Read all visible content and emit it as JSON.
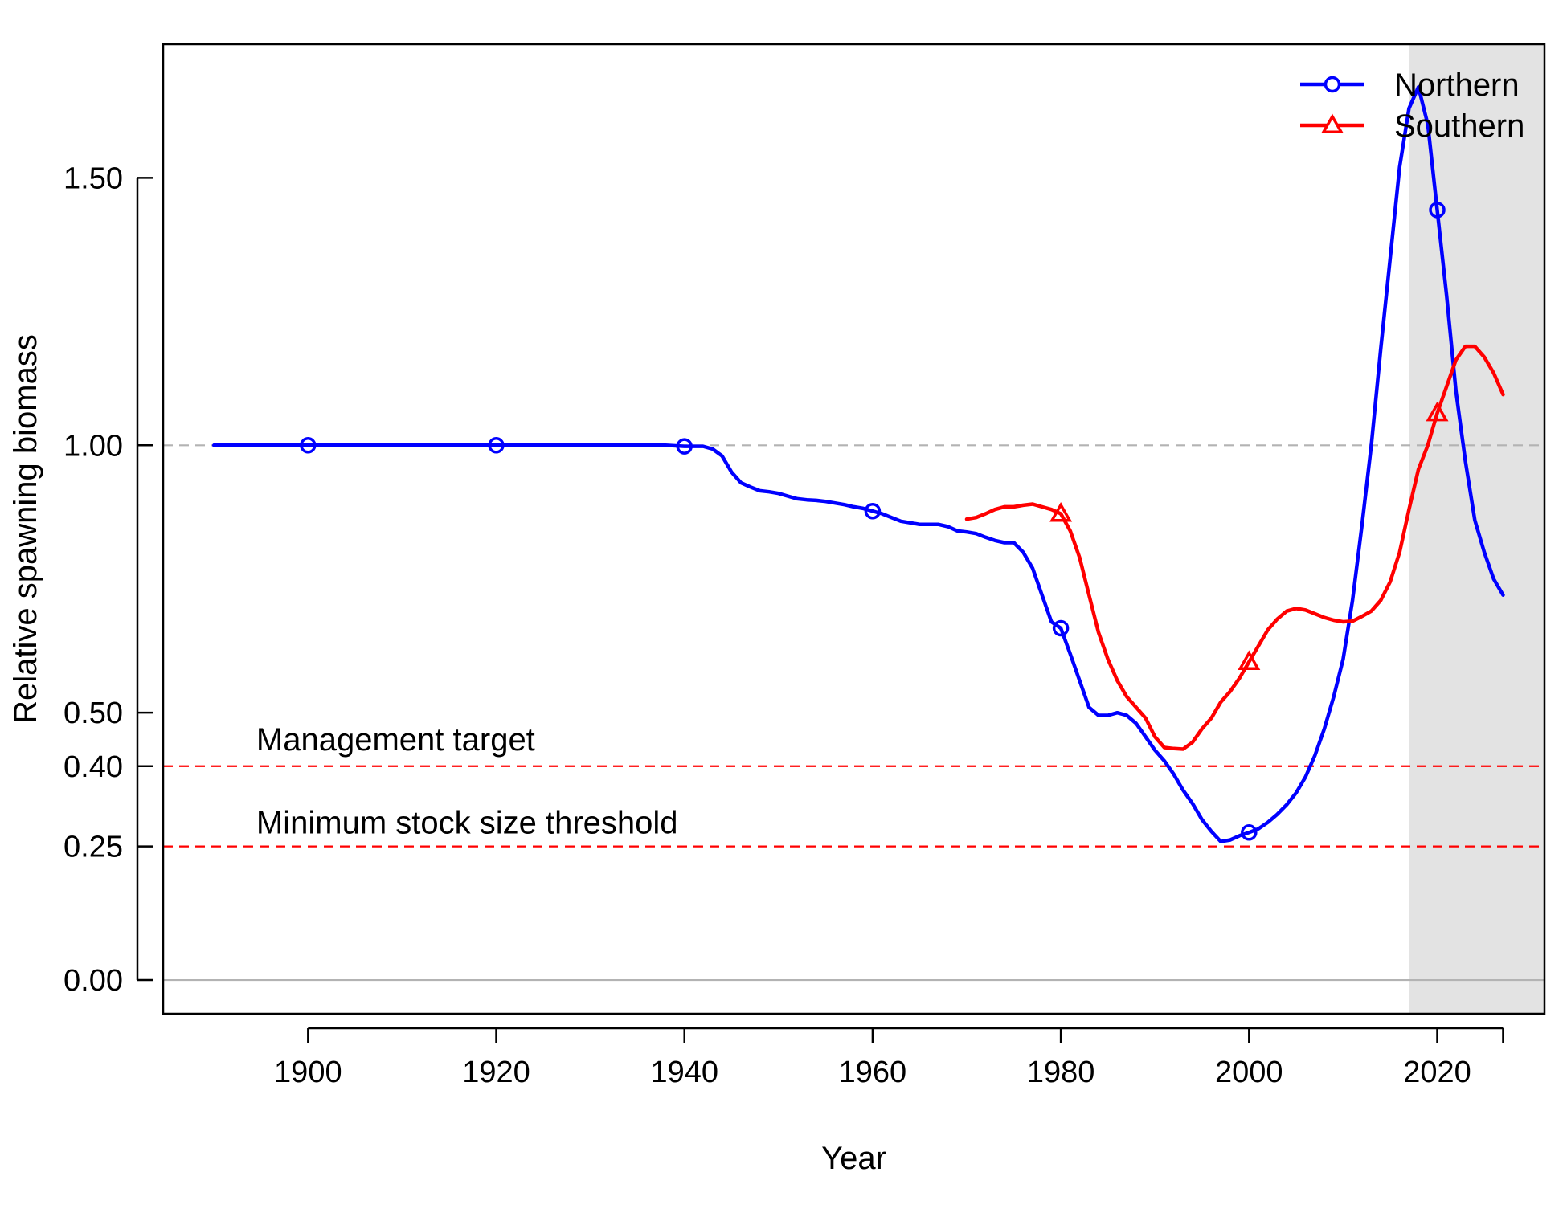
{
  "chart_data": {
    "type": "line",
    "title": "",
    "xlabel": "Year",
    "ylabel": "Relative spawning biomass",
    "xlim": [
      1884.6,
      2031.4
    ],
    "ylim": [
      -0.063,
      1.75
    ],
    "x_ticks": [
      1900,
      1920,
      1940,
      1960,
      1980,
      2000,
      2020
    ],
    "y_ticks": [
      0.0,
      0.25,
      0.4,
      0.5,
      1.0,
      1.5
    ],
    "y_tick_labels": [
      "0.00",
      "0.25",
      "0.40",
      "0.50",
      "1.00",
      "1.50"
    ],
    "x_tick_labels": [
      "1900",
      "1920",
      "1940",
      "1960",
      "1980",
      "2000",
      "2020"
    ],
    "extra_x_tick": 2027,
    "grid": false,
    "legend_position": "top-right",
    "forecast_region": {
      "x_start": 2017,
      "color": "#e3e3e3"
    },
    "reference_lines": [
      {
        "y": 1.0,
        "color": "#b3b3b3",
        "style": "dashed",
        "label": ""
      },
      {
        "y": 0.4,
        "color": "#ff0000",
        "style": "dashed",
        "label": "Management target"
      },
      {
        "y": 0.25,
        "color": "#ff0000",
        "style": "dashed",
        "label": "Minimum stock size threshold"
      },
      {
        "y": 0.0,
        "color": "#b3b3b3",
        "style": "solid",
        "label": ""
      }
    ],
    "series": [
      {
        "name": "Northern",
        "color": "#0000ff",
        "marker": "circle",
        "marker_x": [
          1900,
          1920,
          1940,
          1960,
          1980,
          2000,
          2020
        ],
        "x": [
          1890,
          1900,
          1910,
          1920,
          1930,
          1938,
          1940,
          1942,
          1943,
          1944,
          1945,
          1946,
          1947,
          1948,
          1949,
          1950,
          1951,
          1952,
          1953,
          1954,
          1955,
          1956,
          1957,
          1958,
          1959,
          1960,
          1961,
          1962,
          1963,
          1964,
          1965,
          1966,
          1967,
          1968,
          1969,
          1970,
          1971,
          1972,
          1973,
          1974,
          1975,
          1976,
          1977,
          1978,
          1979,
          1980,
          1981,
          1982,
          1983,
          1984,
          1985,
          1986,
          1987,
          1988,
          1989,
          1990,
          1991,
          1992,
          1993,
          1994,
          1995,
          1996,
          1997,
          1998,
          1999,
          2000,
          2001,
          2002,
          2003,
          2004,
          2005,
          2006,
          2007,
          2008,
          2009,
          2010,
          2011,
          2012,
          2013,
          2014,
          2015,
          2016,
          2017,
          2018,
          2019,
          2020,
          2021,
          2022,
          2023,
          2024,
          2025,
          2026,
          2027
        ],
        "values": [
          1.0,
          1.0,
          1.0,
          1.0,
          1.0,
          1.0,
          0.998,
          0.998,
          0.993,
          0.98,
          0.95,
          0.93,
          0.922,
          0.915,
          0.913,
          0.91,
          0.905,
          0.9,
          0.898,
          0.897,
          0.895,
          0.892,
          0.889,
          0.885,
          0.882,
          0.877,
          0.872,
          0.865,
          0.858,
          0.855,
          0.852,
          0.852,
          0.852,
          0.848,
          0.84,
          0.838,
          0.835,
          0.828,
          0.822,
          0.818,
          0.818,
          0.8,
          0.77,
          0.72,
          0.67,
          0.658,
          0.61,
          0.56,
          0.51,
          0.495,
          0.495,
          0.5,
          0.495,
          0.48,
          0.455,
          0.43,
          0.41,
          0.385,
          0.355,
          0.33,
          0.3,
          0.278,
          0.259,
          0.262,
          0.27,
          0.276,
          0.283,
          0.295,
          0.31,
          0.328,
          0.35,
          0.38,
          0.42,
          0.47,
          0.53,
          0.6,
          0.71,
          0.85,
          1.0,
          1.18,
          1.35,
          1.52,
          1.63,
          1.67,
          1.6,
          1.44,
          1.28,
          1.1,
          0.97,
          0.86,
          0.8,
          0.75,
          0.72
        ]
      },
      {
        "name": "Southern",
        "color": "#ff0000",
        "marker": "triangle",
        "marker_x": [
          1980,
          2000,
          2020
        ],
        "x": [
          1970,
          1971,
          1972,
          1973,
          1974,
          1975,
          1976,
          1977,
          1978,
          1979,
          1980,
          1981,
          1982,
          1983,
          1984,
          1985,
          1986,
          1987,
          1988,
          1989,
          1990,
          1991,
          1992,
          1993,
          1994,
          1995,
          1996,
          1997,
          1998,
          1999,
          2000,
          2001,
          2002,
          2003,
          2004,
          2005,
          2006,
          2007,
          2008,
          2009,
          2010,
          2011,
          2012,
          2013,
          2014,
          2015,
          2016,
          2017,
          2018,
          2019,
          2020,
          2021,
          2022,
          2023,
          2024,
          2025,
          2026,
          2027
        ],
        "values": [
          0.862,
          0.865,
          0.872,
          0.88,
          0.885,
          0.885,
          0.888,
          0.89,
          0.885,
          0.88,
          0.872,
          0.84,
          0.79,
          0.72,
          0.65,
          0.6,
          0.56,
          0.53,
          0.51,
          0.49,
          0.455,
          0.435,
          0.433,
          0.432,
          0.445,
          0.47,
          0.49,
          0.52,
          0.54,
          0.565,
          0.595,
          0.625,
          0.655,
          0.675,
          0.69,
          0.695,
          0.692,
          0.685,
          0.678,
          0.673,
          0.67,
          0.671,
          0.68,
          0.69,
          0.71,
          0.745,
          0.8,
          0.88,
          0.955,
          1.0,
          1.06,
          1.11,
          1.16,
          1.185,
          1.185,
          1.165,
          1.135,
          1.095
        ]
      }
    ]
  }
}
